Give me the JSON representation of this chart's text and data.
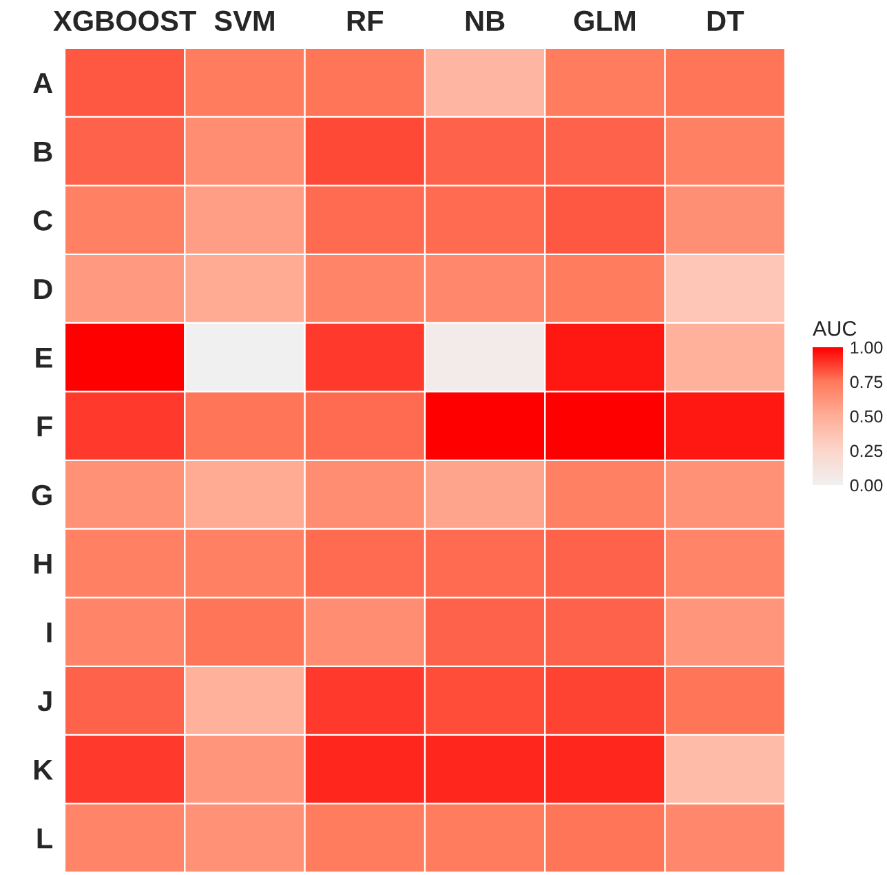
{
  "chart_data": {
    "type": "heatmap",
    "categories": [
      "XGBOOST",
      "SVM",
      "RF",
      "NB",
      "GLM",
      "DT"
    ],
    "y_categories": [
      "A",
      "B",
      "C",
      "D",
      "E",
      "F",
      "G",
      "H",
      "I",
      "J",
      "K",
      "L"
    ],
    "cells": [
      [
        0.82,
        0.74,
        0.76,
        0.45,
        0.74,
        0.76
      ],
      [
        0.8,
        0.66,
        0.85,
        0.8,
        0.8,
        0.72
      ],
      [
        0.72,
        0.58,
        0.78,
        0.78,
        0.82,
        0.65
      ],
      [
        0.6,
        0.52,
        0.7,
        0.68,
        0.74,
        0.35
      ],
      [
        1.0,
        0.0,
        0.88,
        0.05,
        0.95,
        0.48
      ],
      [
        0.88,
        0.76,
        0.78,
        1.0,
        1.0,
        0.95
      ],
      [
        0.64,
        0.52,
        0.66,
        0.55,
        0.72,
        0.64
      ],
      [
        0.72,
        0.72,
        0.78,
        0.78,
        0.8,
        0.7
      ],
      [
        0.7,
        0.76,
        0.66,
        0.8,
        0.8,
        0.62
      ],
      [
        0.8,
        0.48,
        0.88,
        0.84,
        0.86,
        0.76
      ],
      [
        0.88,
        0.62,
        0.92,
        0.92,
        0.92,
        0.42
      ],
      [
        0.7,
        0.64,
        0.74,
        0.74,
        0.76,
        0.68
      ]
    ],
    "clabel": "AUC",
    "clim": [
      0,
      1
    ],
    "cticks": [
      {
        "value": 0,
        "label": "0.00"
      },
      {
        "value": 0.25,
        "label": "0.25"
      },
      {
        "value": 0.5,
        "label": "0.50"
      },
      {
        "value": 0.75,
        "label": "0.75"
      },
      {
        "value": 1,
        "label": "1.00"
      }
    ]
  }
}
